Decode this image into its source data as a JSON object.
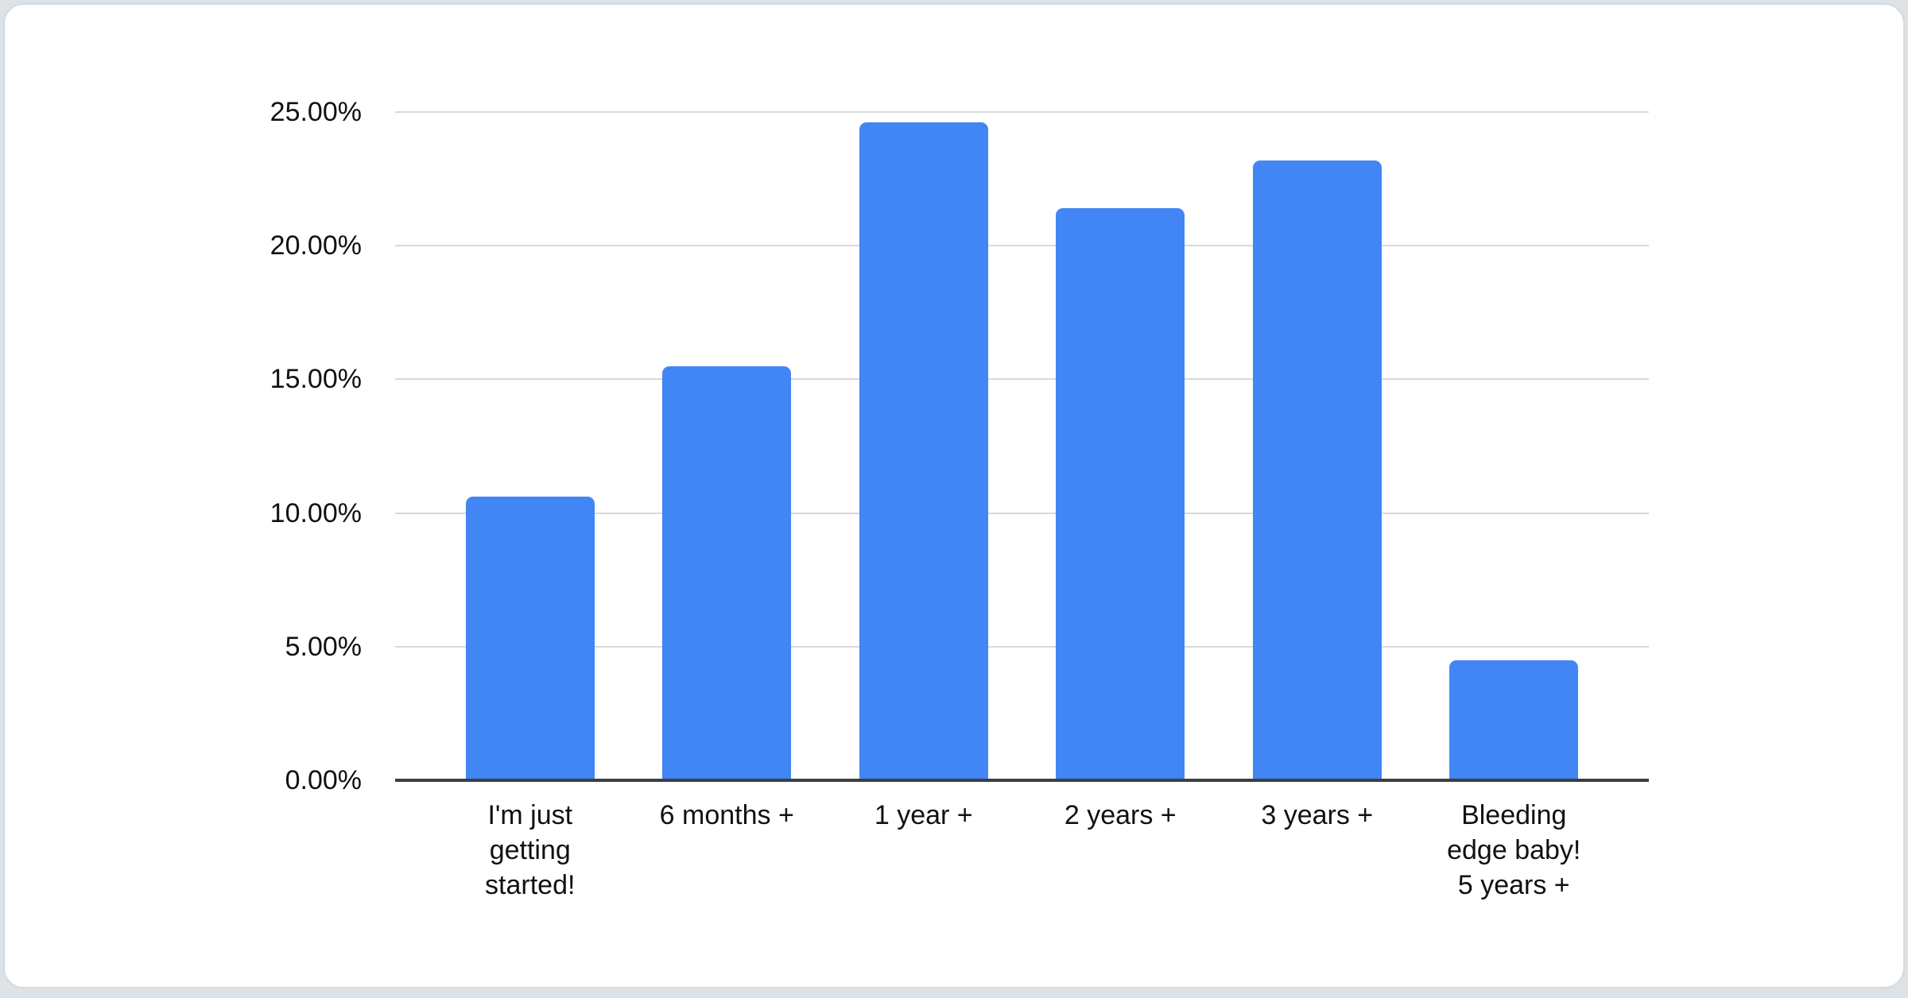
{
  "page": {
    "background": "#dde2e6",
    "card_background": "#ffffff",
    "card_border": "#d6dade"
  },
  "chart_data": {
    "type": "bar",
    "title": "",
    "categories": [
      "I'm just getting started!",
      "6 months +",
      "1 year +",
      "2 years +",
      "3 years +",
      "Bleeding edge baby! 5 years +"
    ],
    "values": [
      10.6,
      15.5,
      24.6,
      21.4,
      23.2,
      4.5
    ],
    "value_unit": "%",
    "xlabel": "",
    "ylabel": "",
    "ylim": [
      0,
      25
    ],
    "yticks": [
      {
        "value": 0,
        "label": "0.00%"
      },
      {
        "value": 5,
        "label": "5.00%"
      },
      {
        "value": 10,
        "label": "10.00%"
      },
      {
        "value": 15,
        "label": "15.00%"
      },
      {
        "value": 20,
        "label": "20.00%"
      },
      {
        "value": 25,
        "label": "25.00%"
      }
    ],
    "grid": true,
    "legend_position": "none",
    "colors": {
      "bar": "#4285f4",
      "gridline": "#d9d9d9",
      "axis_line": "#3b3f43",
      "label_text": "#111111"
    }
  }
}
